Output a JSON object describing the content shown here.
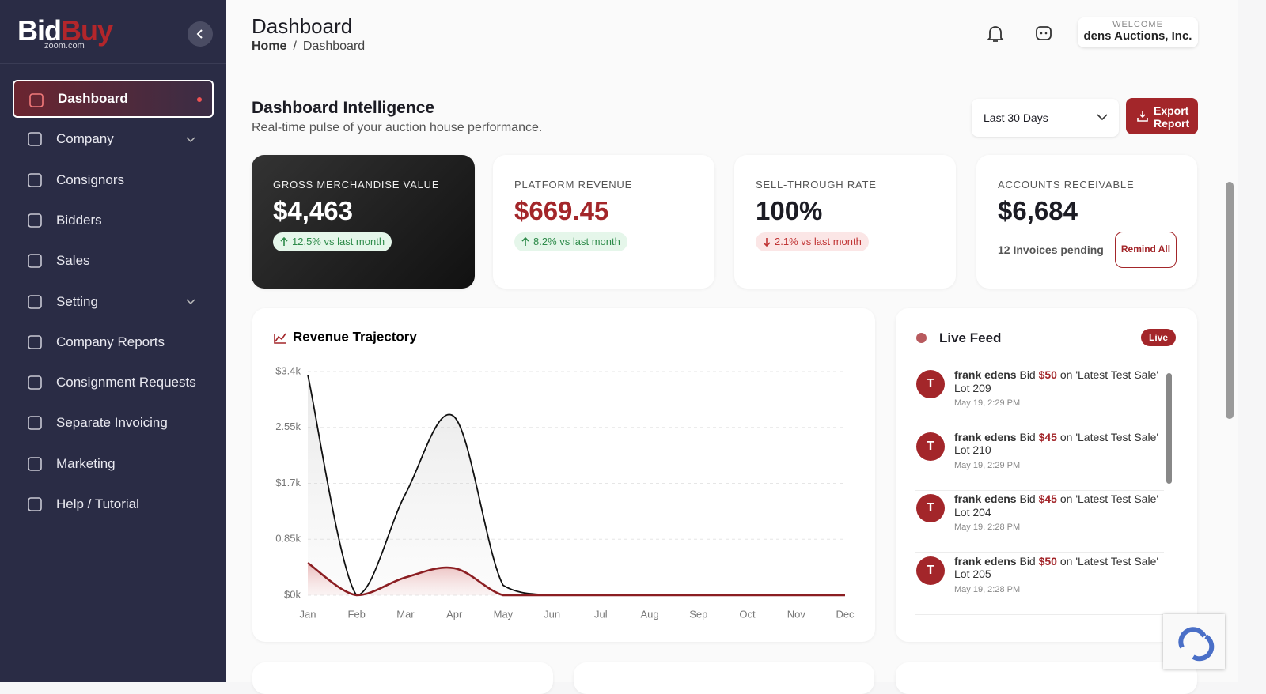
{
  "sidebar": {
    "logo": [
      "Bid",
      "Buy"
    ],
    "logo_sub": "zoom.com",
    "nav": [
      "Dashboard",
      "Company",
      "Consignors",
      "Bidders",
      "Sales",
      "Setting",
      "Company Reports",
      "Consignment Requests",
      "Separate Invoicing",
      "Marketing",
      "Help / Tutorial"
    ]
  },
  "header": {
    "title": "Dashboard",
    "breadcrumb": [
      "Home",
      "/",
      "Dashboard"
    ],
    "welcome": "WELCOME",
    "user": "dens Auctions, Inc."
  },
  "intel": {
    "title": "Dashboard Intelligence",
    "subtitle": "Real-time pulse of your auction house performance.",
    "range": "Last 30 Days",
    "export": "Export Report"
  },
  "kpis": [
    {
      "label": "GROSS MERCHANDISE VALUE",
      "value": "$4,463",
      "change": "12.5% vs last month",
      "trend": "up"
    },
    {
      "label": "PLATFORM REVENUE",
      "value": "$669.45",
      "change": "8.2% vs last month",
      "trend": "up"
    },
    {
      "label": "SELL-THROUGH RATE",
      "value": "100%",
      "change": "2.1% vs last month",
      "trend": "down"
    }
  ],
  "receivable": {
    "label": "ACCOUNTS RECEIVABLE",
    "value": "$6,684",
    "note": "12 Invoices pending",
    "button": "Remind All"
  },
  "chart_data": {
    "type": "line",
    "title": "Revenue Trajectory",
    "categories": [
      "Jan",
      "Feb",
      "Mar",
      "Apr",
      "May",
      "Jun",
      "Jul",
      "Aug",
      "Sep",
      "Oct",
      "Nov",
      "Dec"
    ],
    "ylim": [
      0,
      3400
    ],
    "yticks": [
      {
        "value": 0,
        "label": "$0k"
      },
      {
        "value": 850,
        "label": "0.85k"
      },
      {
        "value": 1700,
        "label": "$1.7k"
      },
      {
        "value": 2550,
        "label": "2.55k"
      },
      {
        "value": 3400,
        "label": "$3.4k"
      }
    ],
    "grid": true,
    "series": [
      {
        "color": "#111111",
        "values": [
          3350,
          0,
          1540,
          2710,
          150,
          0,
          0,
          0,
          0,
          0,
          0,
          0
        ]
      },
      {
        "color": "#8b1e22",
        "values": [
          490,
          0,
          270,
          410,
          0,
          0,
          0,
          0,
          0,
          0,
          0,
          0
        ]
      }
    ]
  },
  "feed": {
    "title": "Live Feed",
    "badge": "Live",
    "items": [
      {
        "name": "frank edens",
        "verb": "Bid",
        "amount": "$50",
        "text": "on 'Latest Test Sale' Lot 209",
        "time": "May 19, 2:29 PM"
      },
      {
        "name": "frank edens",
        "verb": "Bid",
        "amount": "$45",
        "text": "on 'Latest Test Sale' Lot 210",
        "time": "May 19, 2:29 PM"
      },
      {
        "name": "frank edens",
        "verb": "Bid",
        "amount": "$45",
        "text": "on 'Latest Test Sale' Lot 204",
        "time": "May 19, 2:28 PM"
      },
      {
        "name": "frank edens",
        "verb": "Bid",
        "amount": "$50",
        "text": "on 'Latest Test Sale' Lot 205",
        "time": "May 19, 2:28 PM"
      }
    ]
  }
}
